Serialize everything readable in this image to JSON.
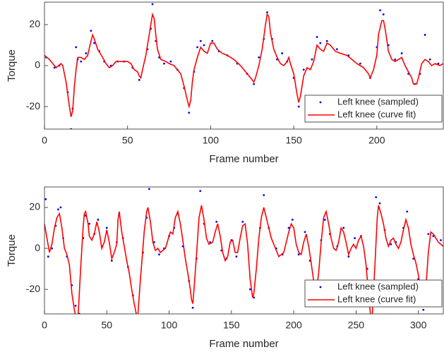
{
  "chart_data": [
    {
      "type": "line",
      "xlabel": "Frame number",
      "ylabel": "Torque",
      "xlim": [
        0,
        240
      ],
      "ylim": [
        -31,
        31
      ],
      "xticks": [
        0,
        50,
        100,
        150,
        200
      ],
      "yticks": [
        -20,
        0,
        20
      ],
      "legend": "lower right",
      "series": [
        {
          "name": "Left knee (sampled)",
          "style": "markers",
          "color": "#0000ff",
          "x": [
            1,
            6,
            9,
            14,
            16,
            17,
            19,
            20,
            22,
            25,
            28,
            30,
            33,
            36,
            40,
            44,
            48,
            53,
            57,
            62,
            64,
            65,
            67,
            69,
            72,
            76,
            80,
            84,
            87,
            90,
            92,
            94,
            96,
            101,
            105,
            110,
            116,
            122,
            126,
            129,
            132,
            134,
            137,
            140,
            143,
            146,
            150,
            153,
            156,
            161,
            164,
            166,
            170,
            176,
            183,
            190,
            196,
            200,
            202,
            204,
            207,
            211,
            215,
            219,
            223,
            226,
            229,
            232,
            237
          ],
          "values": [
            4,
            -1,
            0,
            -13,
            -31,
            -21,
            9,
            3,
            2,
            6,
            17,
            11,
            7,
            2,
            0,
            2,
            2,
            -1,
            -7,
            8,
            18,
            30,
            12,
            4,
            1,
            2,
            -2,
            -11,
            -23,
            -3,
            9,
            12,
            10,
            12,
            7,
            5,
            1,
            -4,
            -9,
            4,
            13,
            26,
            13,
            3,
            6,
            2,
            -6,
            -20,
            -2,
            3,
            14,
            11,
            12,
            8,
            5,
            1,
            -6,
            9,
            27,
            25,
            10,
            3,
            6,
            -4,
            -9,
            -4,
            15,
            3,
            1
          ]
        },
        {
          "name": "Left knee (curve fit)",
          "style": "line",
          "color": "#ff0000",
          "x": [
            0,
            3,
            5,
            7,
            10,
            11,
            13,
            15,
            16,
            17,
            18,
            19,
            20,
            22,
            24,
            26,
            28,
            29,
            30,
            32,
            35,
            37,
            39,
            41,
            43,
            45,
            50,
            52,
            54,
            56,
            57,
            58,
            59,
            61,
            63,
            65,
            66,
            67,
            68,
            70,
            73,
            75,
            78,
            80,
            82,
            84,
            86,
            87,
            88,
            89,
            90,
            92,
            94,
            96,
            98,
            100,
            102,
            104,
            107,
            110,
            114,
            118,
            121,
            124,
            126,
            127,
            129,
            131,
            133,
            134,
            135,
            136,
            138,
            140,
            142,
            144,
            146,
            147,
            148,
            150,
            151,
            152,
            153,
            154,
            156,
            158,
            160,
            162,
            164,
            166,
            168,
            170,
            172,
            175,
            178,
            182,
            185,
            188,
            192,
            195,
            196,
            198,
            200,
            201,
            203,
            204,
            205,
            207,
            209,
            211,
            213,
            215,
            217,
            219,
            221,
            222,
            224,
            225,
            227,
            229,
            231,
            233,
            235,
            238,
            240
          ],
          "values": [
            5,
            3,
            1,
            -1,
            1,
            0,
            -8,
            -20,
            -25,
            -22,
            -10,
            -2,
            4,
            4,
            3,
            5,
            12,
            15,
            13,
            8,
            4,
            1,
            -1,
            0,
            2,
            2,
            2,
            1,
            -2,
            -3,
            -5,
            -6,
            -2,
            5,
            15,
            25,
            23,
            15,
            8,
            3,
            2,
            1,
            0,
            -2,
            -4,
            -10,
            -17,
            -20,
            -17,
            -8,
            -2,
            4,
            9,
            7,
            6,
            11,
            11,
            8,
            6,
            5,
            3,
            0,
            -3,
            -6,
            -8,
            -6,
            0,
            8,
            20,
            25,
            24,
            16,
            8,
            4,
            1,
            0,
            2,
            4,
            1,
            -4,
            -9,
            -14,
            -18,
            -15,
            -5,
            -1,
            -2,
            2,
            10,
            8,
            7,
            11,
            10,
            7,
            6,
            5,
            3,
            1,
            -1,
            -4,
            -6,
            -2,
            5,
            15,
            22,
            22,
            18,
            7,
            3,
            2,
            3,
            4,
            0,
            -3,
            -6,
            -9,
            -9,
            -6,
            1,
            3,
            2,
            0,
            1,
            0,
            1
          ]
        }
      ]
    },
    {
      "type": "line",
      "xlabel": "Frame number",
      "ylabel": "Torque",
      "xlim": [
        0,
        320
      ],
      "ylim": [
        -32,
        30
      ],
      "xticks": [
        0,
        50,
        100,
        150,
        200,
        250,
        300
      ],
      "yticks": [
        -20,
        0,
        20
      ],
      "legend": "lower right",
      "series": [
        {
          "name": "Left knee (sampled)",
          "style": "markers",
          "color": "#0000ff",
          "x": [
            1,
            3,
            6,
            9,
            11,
            13,
            15,
            18,
            22,
            25,
            28,
            31,
            33,
            36,
            40,
            43,
            46,
            50,
            54,
            58,
            60,
            63,
            67,
            71,
            75,
            79,
            82,
            84,
            88,
            92,
            96,
            100,
            104,
            107,
            111,
            116,
            119,
            122,
            125,
            128,
            133,
            138,
            142,
            146,
            150,
            154,
            159,
            165,
            168,
            173,
            176,
            180,
            186,
            191,
            196,
            199,
            204,
            209,
            213,
            218,
            222,
            225,
            229,
            235,
            240,
            244,
            249,
            254,
            259,
            263,
            266,
            269,
            273,
            278,
            282,
            288,
            291,
            296,
            300,
            304,
            308,
            312,
            318
          ],
          "values": [
            24,
            -4,
            0,
            11,
            19,
            20,
            5,
            -4,
            -18,
            -28,
            -32,
            5,
            16,
            12,
            7,
            14,
            1,
            10,
            -6,
            3,
            17,
            5,
            -9,
            -23,
            -34,
            -2,
            15,
            29,
            3,
            -3,
            0,
            6,
            10,
            17,
            1,
            -16,
            -29,
            -5,
            28,
            12,
            3,
            13,
            -1,
            -5,
            4,
            -4,
            13,
            -20,
            -24,
            10,
            26,
            10,
            0,
            -3,
            10,
            14,
            -3,
            8,
            -6,
            -26,
            4,
            14,
            7,
            1,
            10,
            -4,
            5,
            6,
            -10,
            -35,
            25,
            22,
            9,
            2,
            3,
            10,
            18,
            -5,
            -15,
            -30,
            7,
            6,
            4
          ]
        },
        {
          "name": "Left knee (curve fit)",
          "style": "line",
          "color": "#ff0000",
          "x": [
            0,
            2,
            4,
            6,
            8,
            10,
            12,
            14,
            16,
            18,
            20,
            22,
            24,
            26,
            27,
            29,
            31,
            32,
            33,
            35,
            36,
            38,
            40,
            42,
            44,
            46,
            48,
            50,
            52,
            54,
            56,
            58,
            59,
            60,
            62,
            64,
            66,
            68,
            70,
            72,
            74,
            75,
            77,
            79,
            80,
            82,
            83,
            85,
            87,
            89,
            91,
            93,
            95,
            97,
            99,
            101,
            103,
            105,
            107,
            109,
            111,
            113,
            115,
            117,
            118,
            119,
            120,
            122,
            124,
            126,
            128,
            130,
            132,
            135,
            137,
            139,
            141,
            143,
            145,
            147,
            149,
            151,
            153,
            155,
            157,
            159,
            161,
            163,
            165,
            167,
            168,
            170,
            172,
            174,
            176,
            178,
            180,
            182,
            184,
            186,
            188,
            190,
            192,
            194,
            196,
            198,
            200,
            202,
            204,
            206,
            208,
            210,
            212,
            214,
            216,
            218,
            220,
            222,
            224,
            226,
            228,
            230,
            232,
            234,
            236,
            238,
            240,
            242,
            244,
            246,
            248,
            250,
            252,
            254,
            256,
            258,
            260,
            262,
            263,
            265,
            267,
            268,
            270,
            272,
            274,
            276,
            278,
            280,
            282,
            284,
            286,
            288,
            290,
            292,
            294,
            296,
            298,
            300,
            302,
            304,
            306,
            308,
            310,
            312,
            314,
            316,
            318,
            320
          ],
          "values": [
            12,
            5,
            -2,
            2,
            10,
            15,
            17,
            10,
            0,
            -3,
            -8,
            -22,
            -30,
            -36,
            -33,
            -10,
            10,
            17,
            18,
            12,
            6,
            4,
            7,
            13,
            8,
            0,
            3,
            9,
            3,
            -5,
            -2,
            2,
            14,
            18,
            8,
            1,
            -6,
            -12,
            -20,
            -27,
            -33,
            -32,
            -15,
            0,
            8,
            18,
            20,
            13,
            3,
            -1,
            0,
            -2,
            -1,
            0,
            4,
            8,
            7,
            15,
            18,
            12,
            4,
            -5,
            -12,
            -20,
            -25,
            -27,
            -20,
            -3,
            15,
            21,
            14,
            5,
            2,
            3,
            8,
            12,
            6,
            -2,
            -6,
            -4,
            3,
            4,
            -2,
            -2,
            5,
            11,
            12,
            2,
            -15,
            -24,
            -22,
            -10,
            5,
            15,
            20,
            15,
            10,
            5,
            2,
            -1,
            -4,
            -3,
            -2,
            3,
            8,
            12,
            10,
            2,
            -2,
            -3,
            3,
            7,
            1,
            -7,
            -16,
            -22,
            -12,
            3,
            15,
            18,
            12,
            5,
            0,
            -1,
            3,
            10,
            8,
            3,
            -3,
            0,
            2,
            0,
            4,
            6,
            1,
            -8,
            -22,
            -35,
            -33,
            -10,
            15,
            21,
            17,
            12,
            5,
            1,
            4,
            5,
            2,
            0,
            3,
            9,
            14,
            10,
            2,
            -3,
            -7,
            -13,
            -21,
            -26,
            -20,
            -2,
            8,
            7,
            5,
            3,
            2,
            1
          ]
        }
      ]
    }
  ]
}
